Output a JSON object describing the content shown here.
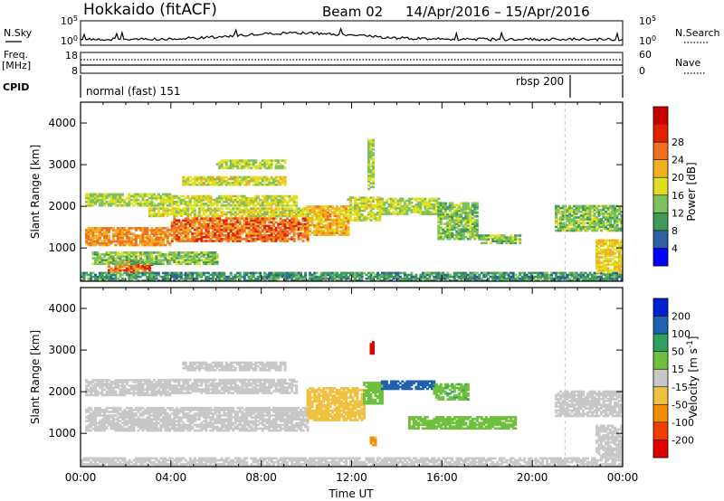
{
  "header": {
    "station": "Hokkaido (fitACF)",
    "beam": "Beam 02",
    "dates": "14/Apr/2016 – 15/Apr/2016"
  },
  "status": {
    "nsky_label": "N.Sky",
    "nsky_ticks": [
      "10^5",
      "10^0"
    ],
    "nsearch_label": "N.Search",
    "freq_label_1": "Freq.",
    "freq_label_2": "[MHz]",
    "freq_ticks": [
      "18",
      "8"
    ],
    "nave_label": "Nave",
    "nave_ticks": [
      "60",
      "0"
    ],
    "cpid_label": "CPID",
    "cpid_modes": [
      "normal (fast) 151",
      "rbsp 200"
    ]
  },
  "colors": {
    "power": [
      "#0000ff",
      "#2e5fa0",
      "#3f9a5a",
      "#7cc060",
      "#e0e020",
      "#f0b020",
      "#f07020",
      "#e02000",
      "#c80000"
    ],
    "velocity": [
      "#e00000",
      "#f04000",
      "#f09000",
      "#f0c040",
      "#c8c8c8",
      "#70c040",
      "#30a060",
      "#2060b0",
      "#0020d0"
    ]
  },
  "chart_data": [
    {
      "type": "heatmap",
      "panel": "power",
      "ylabel": "Slant Range [km]",
      "xticks": [
        "00:00",
        "04:00",
        "08:00",
        "12:00",
        "16:00",
        "20:00",
        "00:00"
      ],
      "yticks": [
        1000,
        2000,
        3000,
        4000
      ],
      "ylim": [
        200,
        4500
      ],
      "xlim_hours": [
        0,
        24
      ],
      "colorbar_label": "Power [dB]",
      "colorbar_ticks": [
        4,
        8,
        12,
        16,
        20,
        24,
        28
      ],
      "colorbar_range": [
        0,
        32
      ],
      "regions": [
        {
          "t0": 0.2,
          "t1": 4.0,
          "r0": 1050,
          "r1": 1500,
          "value": 24
        },
        {
          "t0": 4.0,
          "t1": 10.0,
          "r0": 1150,
          "r1": 1700,
          "value": 26
        },
        {
          "t0": 10.0,
          "t1": 11.8,
          "r0": 1300,
          "r1": 2000,
          "value": 22
        },
        {
          "t0": 11.8,
          "t1": 13.2,
          "r0": 1650,
          "r1": 2200,
          "value": 18
        },
        {
          "t0": 13.2,
          "t1": 15.8,
          "r0": 1800,
          "r1": 2200,
          "value": 16
        },
        {
          "t0": 15.8,
          "t1": 17.6,
          "r0": 1200,
          "r1": 2100,
          "value": 14
        },
        {
          "t0": 17.6,
          "t1": 19.5,
          "r0": 1100,
          "r1": 1300,
          "value": 14
        },
        {
          "t0": 0.2,
          "t1": 4.0,
          "r0": 2000,
          "r1": 2300,
          "value": 16
        },
        {
          "t0": 4.0,
          "t1": 9.5,
          "r0": 2000,
          "r1": 2250,
          "value": 17
        },
        {
          "t0": 3.0,
          "t1": 10.0,
          "r0": 1750,
          "r1": 1950,
          "value": 18
        },
        {
          "t0": 4.5,
          "t1": 9.0,
          "r0": 2500,
          "r1": 2700,
          "value": 18
        },
        {
          "t0": 6.0,
          "t1": 9.0,
          "r0": 2900,
          "r1": 3100,
          "value": 16
        },
        {
          "t0": 1.2,
          "t1": 3.2,
          "r0": 400,
          "r1": 700,
          "value": 26
        },
        {
          "t0": 0.5,
          "t1": 6.0,
          "r0": 600,
          "r1": 900,
          "value": 14
        },
        {
          "t0": 0.0,
          "t1": 24.0,
          "r0": 200,
          "r1": 400,
          "value": 10
        },
        {
          "t0": 21.0,
          "t1": 24.0,
          "r0": 1400,
          "r1": 2000,
          "value": 14
        },
        {
          "t0": 22.8,
          "t1": 24.0,
          "r0": 400,
          "r1": 1200,
          "value": 20
        },
        {
          "t0": 12.7,
          "t1": 12.95,
          "r0": 2400,
          "r1": 3600,
          "value": 16
        }
      ]
    },
    {
      "type": "heatmap",
      "panel": "velocity",
      "ylabel": "Slant Range [km]",
      "xlabel": "Time UT",
      "xticks": [
        "00:00",
        "04:00",
        "08:00",
        "12:00",
        "16:00",
        "20:00",
        "00:00"
      ],
      "yticks": [
        1000,
        2000,
        3000,
        4000
      ],
      "ylim": [
        200,
        4500
      ],
      "xlim_hours": [
        0,
        24
      ],
      "colorbar_label": "Velocity [m s^-1]",
      "colorbar_ticks": [
        -200,
        -100,
        -50,
        -15,
        15,
        50,
        100,
        200
      ],
      "regions": [
        {
          "t0": 0.2,
          "t1": 10.0,
          "r0": 1050,
          "r1": 1600,
          "value": 0
        },
        {
          "t0": 0.2,
          "t1": 4.0,
          "r0": 1900,
          "r1": 2300,
          "value": 0
        },
        {
          "t0": 4.0,
          "t1": 9.5,
          "r0": 1950,
          "r1": 2300,
          "value": 0
        },
        {
          "t0": 4.5,
          "t1": 9.0,
          "r0": 2500,
          "r1": 2700,
          "value": 0
        },
        {
          "t0": 10.0,
          "t1": 12.5,
          "r0": 1300,
          "r1": 2100,
          "value": -30
        },
        {
          "t0": 12.5,
          "t1": 13.3,
          "r0": 1700,
          "r1": 2200,
          "value": 30
        },
        {
          "t0": 13.3,
          "t1": 15.6,
          "r0": 2050,
          "r1": 2250,
          "value": 150
        },
        {
          "t0": 15.6,
          "t1": 17.2,
          "r0": 1800,
          "r1": 2200,
          "value": 40
        },
        {
          "t0": 14.5,
          "t1": 19.3,
          "r0": 1100,
          "r1": 1400,
          "value": 30
        },
        {
          "t0": 21.0,
          "t1": 24.0,
          "r0": 1400,
          "r1": 2000,
          "value": 0
        },
        {
          "t0": 22.8,
          "t1": 24.0,
          "r0": 400,
          "r1": 1200,
          "value": 0
        },
        {
          "t0": 0.0,
          "t1": 24.0,
          "r0": 200,
          "r1": 400,
          "value": 0
        },
        {
          "t0": 12.8,
          "t1": 12.95,
          "r0": 2900,
          "r1": 3200,
          "value": -250
        },
        {
          "t0": 12.8,
          "t1": 13.1,
          "r0": 700,
          "r1": 900,
          "value": -60
        }
      ]
    }
  ]
}
